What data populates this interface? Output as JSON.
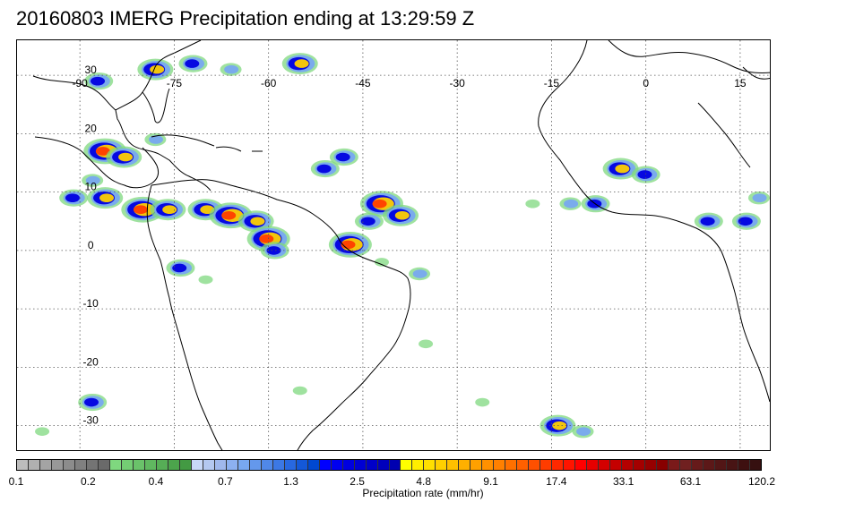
{
  "title": "20160803 IMERG Precipitation ending at 13:29:59 Z",
  "map": {
    "lon_labels": [
      "-90",
      "-75",
      "-60",
      "-45",
      "-30",
      "-15",
      "0",
      "15"
    ],
    "lat_labels": [
      "30",
      "20",
      "10",
      "0",
      "-10",
      "-20",
      "-30"
    ],
    "lon_values": [
      -90,
      -75,
      -60,
      -45,
      -30,
      -15,
      0,
      15
    ],
    "lat_values": [
      30,
      20,
      10,
      0,
      -10,
      -20,
      -30
    ],
    "lon_range": [
      -100,
      20
    ],
    "lat_range": [
      -34.5,
      36
    ],
    "grid": "dotted",
    "precip_cells": [
      {
        "lon": -87,
        "lat": 29,
        "level": 3
      },
      {
        "lon": -78,
        "lat": 31,
        "level": 4
      },
      {
        "lon": -72,
        "lat": 32,
        "level": 3
      },
      {
        "lon": -66,
        "lat": 31,
        "level": 2
      },
      {
        "lon": -55,
        "lat": 32,
        "level": 4
      },
      {
        "lon": -86,
        "lat": 17,
        "level": 5
      },
      {
        "lon": -83,
        "lat": 16,
        "level": 4
      },
      {
        "lon": -91,
        "lat": 9,
        "level": 3
      },
      {
        "lon": -86,
        "lat": 9,
        "level": 4
      },
      {
        "lon": -80,
        "lat": 7,
        "level": 5
      },
      {
        "lon": -76,
        "lat": 7,
        "level": 4
      },
      {
        "lon": -70,
        "lat": 7,
        "level": 4
      },
      {
        "lon": -66,
        "lat": 6,
        "level": 5
      },
      {
        "lon": -62,
        "lat": 5,
        "level": 4
      },
      {
        "lon": -60,
        "lat": 2,
        "level": 5
      },
      {
        "lon": -59,
        "lat": 0,
        "level": 3
      },
      {
        "lon": -51,
        "lat": 14,
        "level": 3
      },
      {
        "lon": -48,
        "lat": 16,
        "level": 3
      },
      {
        "lon": -42,
        "lat": 8,
        "level": 5
      },
      {
        "lon": -39,
        "lat": 6,
        "level": 4
      },
      {
        "lon": -44,
        "lat": 5,
        "level": 3
      },
      {
        "lon": -47,
        "lat": 1,
        "level": 5
      },
      {
        "lon": -42,
        "lat": -2,
        "level": 1
      },
      {
        "lon": -36,
        "lat": -4,
        "level": 2
      },
      {
        "lon": -88,
        "lat": 12,
        "level": 2
      },
      {
        "lon": -74,
        "lat": -3,
        "level": 3
      },
      {
        "lon": -70,
        "lat": -5,
        "level": 1
      },
      {
        "lon": -78,
        "lat": 19,
        "level": 2
      },
      {
        "lon": -4,
        "lat": 14,
        "level": 4
      },
      {
        "lon": 0,
        "lat": 13,
        "level": 3
      },
      {
        "lon": -8,
        "lat": 8,
        "level": 3
      },
      {
        "lon": -12,
        "lat": 8,
        "level": 2
      },
      {
        "lon": 10,
        "lat": 5,
        "level": 3
      },
      {
        "lon": 16,
        "lat": 5,
        "level": 3
      },
      {
        "lon": 18,
        "lat": 9,
        "level": 2
      },
      {
        "lon": -18,
        "lat": 8,
        "level": 1
      },
      {
        "lon": -88,
        "lat": -26,
        "level": 3
      },
      {
        "lon": -26,
        "lat": -26,
        "level": 1
      },
      {
        "lon": -14,
        "lat": -30,
        "level": 4
      },
      {
        "lon": -10,
        "lat": -31,
        "level": 2
      },
      {
        "lon": -96,
        "lat": -31,
        "level": 1
      },
      {
        "lon": -55,
        "lat": -24,
        "level": 1
      },
      {
        "lon": -35,
        "lat": -16,
        "level": 1
      }
    ]
  },
  "colorbar": {
    "colors": [
      "#bdbdbd",
      "#b0b0b0",
      "#a4a4a4",
      "#989898",
      "#8c8c8c",
      "#808080",
      "#747474",
      "#6a6a6a",
      "#7fd87f",
      "#74cd74",
      "#6ac26a",
      "#60b860",
      "#56ae56",
      "#4ca44c",
      "#439a43",
      "#c8d8f8",
      "#b4c8f0",
      "#a0b8ec",
      "#8cb0f0",
      "#78a8f0",
      "#6498ec",
      "#5088e8",
      "#3c78e4",
      "#2868e0",
      "#1458d8",
      "#0048d0",
      "#0000ff",
      "#0000f0",
      "#0000e0",
      "#0000d4",
      "#0000c8",
      "#0000bc",
      "#0000b0",
      "#ffff00",
      "#ffee00",
      "#ffe000",
      "#ffd000",
      "#ffc000",
      "#ffb000",
      "#ffa000",
      "#ff9000",
      "#ff8000",
      "#ff7000",
      "#ff6000",
      "#ff5000",
      "#ff3c00",
      "#ff2800",
      "#ff1400",
      "#ff0000",
      "#e60000",
      "#d40000",
      "#c40000",
      "#b40000",
      "#a40000",
      "#960000",
      "#880000",
      "#7a1a1a",
      "#702020",
      "#661a1a",
      "#5c1818",
      "#521616",
      "#481414",
      "#3e1010",
      "#361010"
    ],
    "ticks": [
      {
        "label": "0.1",
        "frac": 0.0
      },
      {
        "label": "0.2",
        "frac": 0.0965
      },
      {
        "label": "0.4",
        "frac": 0.1875
      },
      {
        "label": "0.7",
        "frac": 0.2805
      },
      {
        "label": "1.3",
        "frac": 0.3685
      },
      {
        "label": "2.5",
        "frac": 0.4575
      },
      {
        "label": "4.8",
        "frac": 0.5465
      },
      {
        "label": "9.1",
        "frac": 0.6365
      },
      {
        "label": "17.4",
        "frac": 0.7245
      },
      {
        "label": "33.1",
        "frac": 0.8145
      },
      {
        "label": "63.1",
        "frac": 0.9045
      },
      {
        "label": "120.2",
        "frac": 1.0
      }
    ],
    "label": "Precipitation rate (mm/hr)"
  }
}
